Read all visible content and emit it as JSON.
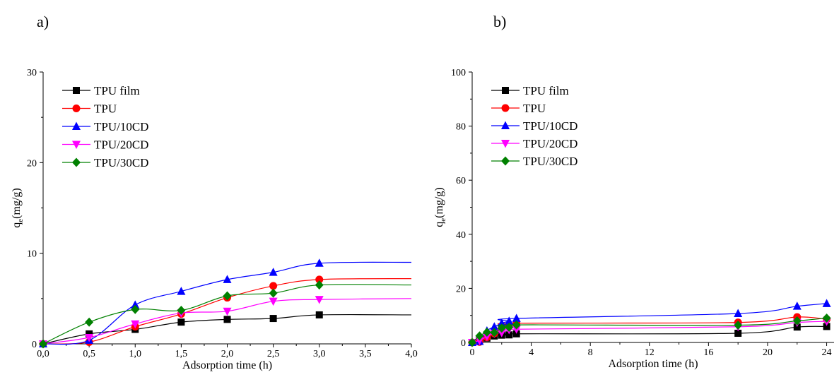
{
  "chart_data": [
    {
      "panel": "a)",
      "type": "line",
      "xlabel": "Adsorption time (h)",
      "ylabel_main": "q",
      "ylabel_sub": "e",
      "ylabel_rest": "(mg/g)",
      "xlim": [
        0,
        4
      ],
      "ylim": [
        0,
        30
      ],
      "xticks": [
        "0,0",
        "0,5",
        "1,0",
        "1,5",
        "2,0",
        "2,5",
        "3,0",
        "3,5",
        "4,0"
      ],
      "yticks": [
        "0",
        "10",
        "20",
        "30"
      ],
      "legend": "top-left",
      "series": [
        {
          "name": "TPU film",
          "color": "#000000",
          "marker": "square",
          "x": [
            0,
            0.5,
            1.0,
            1.5,
            2.0,
            2.5,
            3.0
          ],
          "y": [
            0,
            1.1,
            1.6,
            2.4,
            2.7,
            2.8,
            3.2
          ],
          "tail": 3.2
        },
        {
          "name": "TPU",
          "color": "#ff0000",
          "marker": "circle",
          "x": [
            0,
            0.5,
            1.0,
            1.5,
            2.0,
            2.5,
            3.0
          ],
          "y": [
            0,
            0.2,
            1.9,
            3.3,
            5.1,
            6.4,
            7.1
          ],
          "tail": 7.2
        },
        {
          "name": "TPU/10CD",
          "color": "#0000ff",
          "marker": "triangle-up",
          "x": [
            0,
            0.5,
            1.0,
            1.5,
            2.0,
            2.5,
            3.0
          ],
          "y": [
            0,
            0.4,
            4.3,
            5.8,
            7.1,
            7.9,
            8.9
          ],
          "tail": 9.0
        },
        {
          "name": "TPU/20CD",
          "color": "#ff00ff",
          "marker": "triangle-down",
          "x": [
            0,
            0.5,
            1.0,
            1.5,
            2.0,
            2.5,
            3.0
          ],
          "y": [
            0,
            0.7,
            2.2,
            3.4,
            3.6,
            4.7,
            4.9
          ],
          "tail": 5.0
        },
        {
          "name": "TPU/30CD",
          "color": "#008000",
          "marker": "diamond",
          "x": [
            0,
            0.5,
            1.0,
            1.5,
            2.0,
            2.5,
            3.0
          ],
          "y": [
            0,
            2.4,
            3.8,
            3.7,
            5.3,
            5.6,
            6.5
          ],
          "tail": 6.5
        }
      ]
    },
    {
      "panel": "b)",
      "type": "line",
      "xlabel": "Adsorption time (h)",
      "ylabel_main": "q",
      "ylabel_sub": "e",
      "ylabel_rest": "(mg/g)",
      "xlim": [
        0,
        24.5
      ],
      "ylim": [
        0,
        100
      ],
      "xticks": [
        "0",
        "4",
        "8",
        "12",
        "16",
        "20",
        "24"
      ],
      "yticks": [
        "0",
        "20",
        "40",
        "60",
        "80",
        "100"
      ],
      "legend": "top-left",
      "series": [
        {
          "name": "TPU film",
          "color": "#000000",
          "marker": "square",
          "x": [
            0,
            0.5,
            1.0,
            1.5,
            2.0,
            2.5,
            3.0,
            18,
            22,
            24
          ],
          "y": [
            0,
            1.1,
            1.6,
            2.4,
            2.7,
            2.8,
            3.2,
            3.4,
            5.7,
            5.9
          ]
        },
        {
          "name": "TPU",
          "color": "#ff0000",
          "marker": "circle",
          "x": [
            0,
            0.5,
            1.0,
            1.5,
            2.0,
            2.5,
            3.0,
            18,
            22,
            24
          ],
          "y": [
            0,
            0.2,
            1.9,
            3.3,
            5.1,
            6.4,
            7.1,
            7.4,
            9.4,
            8.6
          ]
        },
        {
          "name": "TPU/10CD",
          "color": "#0000ff",
          "marker": "triangle-up",
          "x": [
            0,
            0.5,
            1.0,
            1.5,
            2.0,
            2.5,
            3.0,
            18,
            22,
            24
          ],
          "y": [
            0,
            0.4,
            4.3,
            5.8,
            7.1,
            7.9,
            8.9,
            10.7,
            13.4,
            14.4
          ]
        },
        {
          "name": "TPU/20CD",
          "color": "#ff00ff",
          "marker": "triangle-down",
          "x": [
            0,
            0.5,
            1.0,
            1.5,
            2.0,
            2.5,
            3.0,
            18,
            22,
            24
          ],
          "y": [
            0,
            0.7,
            2.2,
            3.4,
            3.6,
            4.7,
            4.9,
            5.8,
            7.4,
            7.8
          ]
        },
        {
          "name": "TPU/30CD",
          "color": "#008000",
          "marker": "diamond",
          "x": [
            0,
            0.5,
            1.0,
            1.5,
            2.0,
            2.5,
            3.0,
            18,
            22,
            24
          ],
          "y": [
            0,
            2.4,
            3.8,
            3.7,
            5.3,
            5.6,
            6.5,
            6.4,
            8.0,
            9.0
          ]
        }
      ]
    }
  ]
}
